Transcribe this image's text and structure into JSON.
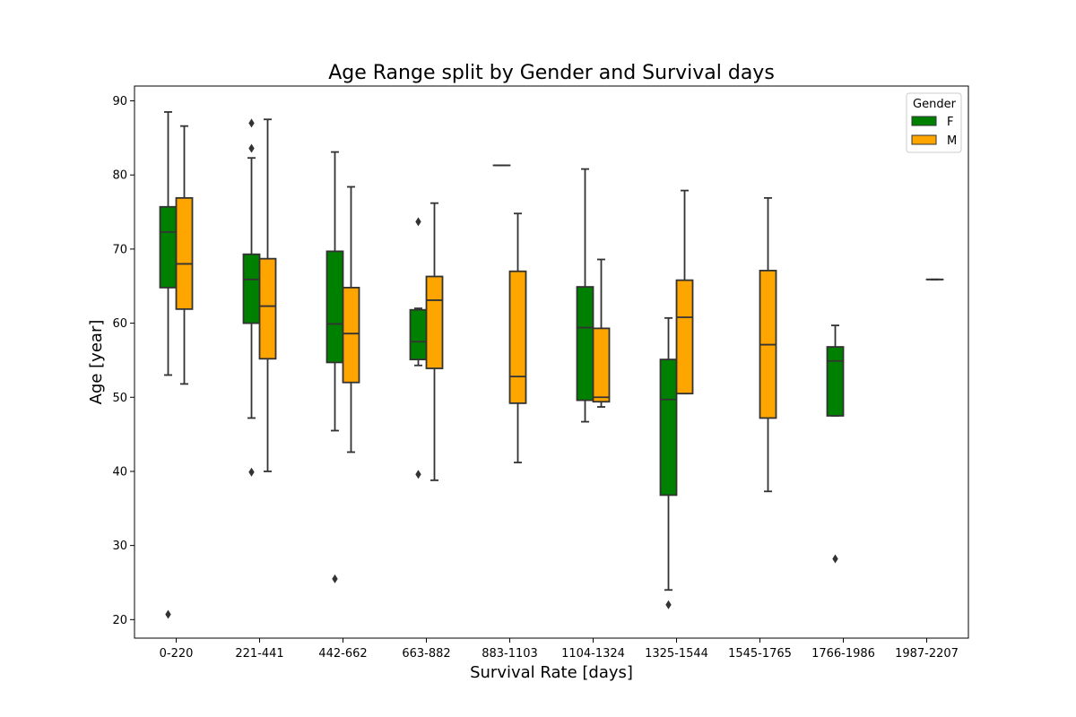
{
  "chart_data": {
    "type": "box",
    "title": "Age Range split by Gender and Survival days",
    "xlabel": "Survival Rate [days]",
    "ylabel": "Age [year]",
    "ylim": [
      17.5,
      92
    ],
    "yticks": [
      20,
      30,
      40,
      50,
      60,
      70,
      80,
      90
    ],
    "categories": [
      "0-220",
      "221-441",
      "442-662",
      "663-882",
      "883-1103",
      "1104-1324",
      "1325-1544",
      "1545-1765",
      "1766-1986",
      "1987-2207"
    ],
    "legend": {
      "title": "Gender",
      "position": "top-right",
      "entries": [
        "F",
        "M"
      ]
    },
    "series": [
      {
        "name": "F",
        "color": "#008000",
        "boxes": [
          {
            "category": "0-220",
            "whislo": 53,
            "q1": 64.8,
            "med": 72.3,
            "q3": 75.7,
            "whishi": 88.5,
            "fliers": [
              20.7
            ]
          },
          {
            "category": "221-441",
            "whislo": 47.2,
            "q1": 60,
            "med": 65.9,
            "q3": 69.3,
            "whishi": 82.3,
            "fliers": [
              87,
              83.6,
              39.9
            ]
          },
          {
            "category": "442-662",
            "whislo": 45.5,
            "q1": 54.7,
            "med": 59.9,
            "q3": 69.7,
            "whishi": 83.1,
            "fliers": [
              25.5
            ]
          },
          {
            "category": "663-882",
            "whislo": 54.3,
            "q1": 55.1,
            "med": 57.5,
            "q3": 61.8,
            "whishi": 62,
            "fliers": [
              73.7,
              39.6
            ]
          },
          {
            "category": "883-1103",
            "whislo": 81.3,
            "q1": 81.3,
            "med": 81.3,
            "q3": 81.3,
            "whishi": 81.3,
            "fliers": []
          },
          {
            "category": "1104-1324",
            "whislo": 46.7,
            "q1": 49.6,
            "med": 59.4,
            "q3": 64.9,
            "whishi": 80.8,
            "fliers": []
          },
          {
            "category": "1325-1544",
            "whislo": 24,
            "q1": 36.8,
            "med": 49.7,
            "q3": 55.1,
            "whishi": 60.7,
            "fliers": [
              22
            ]
          },
          null,
          {
            "category": "1766-1986",
            "whislo": 47.5,
            "q1": 47.5,
            "med": 54.9,
            "q3": 56.8,
            "whishi": 59.7,
            "fliers": [
              28.2
            ]
          },
          null
        ]
      },
      {
        "name": "M",
        "color": "#ffa500",
        "boxes": [
          {
            "category": "0-220",
            "whislo": 51.8,
            "q1": 61.9,
            "med": 68,
            "q3": 76.9,
            "whishi": 86.6,
            "fliers": []
          },
          {
            "category": "221-441",
            "whislo": 40,
            "q1": 55.2,
            "med": 62.3,
            "q3": 68.7,
            "whishi": 87.5,
            "fliers": []
          },
          {
            "category": "442-662",
            "whislo": 42.6,
            "q1": 52,
            "med": 58.6,
            "q3": 64.8,
            "whishi": 78.4,
            "fliers": []
          },
          {
            "category": "663-882",
            "whislo": 38.8,
            "q1": 53.9,
            "med": 63.1,
            "q3": 66.3,
            "whishi": 76.2,
            "fliers": []
          },
          {
            "category": "883-1103",
            "whislo": 41.2,
            "q1": 49.2,
            "med": 52.8,
            "q3": 67,
            "whishi": 74.8,
            "fliers": []
          },
          {
            "category": "1104-1324",
            "whislo": 48.7,
            "q1": 49.4,
            "med": 50,
            "q3": 59.3,
            "whishi": 68.6,
            "fliers": []
          },
          {
            "category": "1325-1544",
            "whislo": 50.5,
            "q1": 50.5,
            "med": 60.8,
            "q3": 65.8,
            "whishi": 77.9,
            "fliers": []
          },
          {
            "category": "1545-1765",
            "whislo": 37.3,
            "q1": 47.2,
            "med": 57.1,
            "q3": 67.1,
            "whishi": 76.9,
            "fliers": []
          },
          null,
          {
            "category": "1987-2207",
            "whislo": 65.9,
            "q1": 65.9,
            "med": 65.9,
            "q3": 65.9,
            "whishi": 65.9,
            "fliers": []
          }
        ]
      }
    ]
  }
}
